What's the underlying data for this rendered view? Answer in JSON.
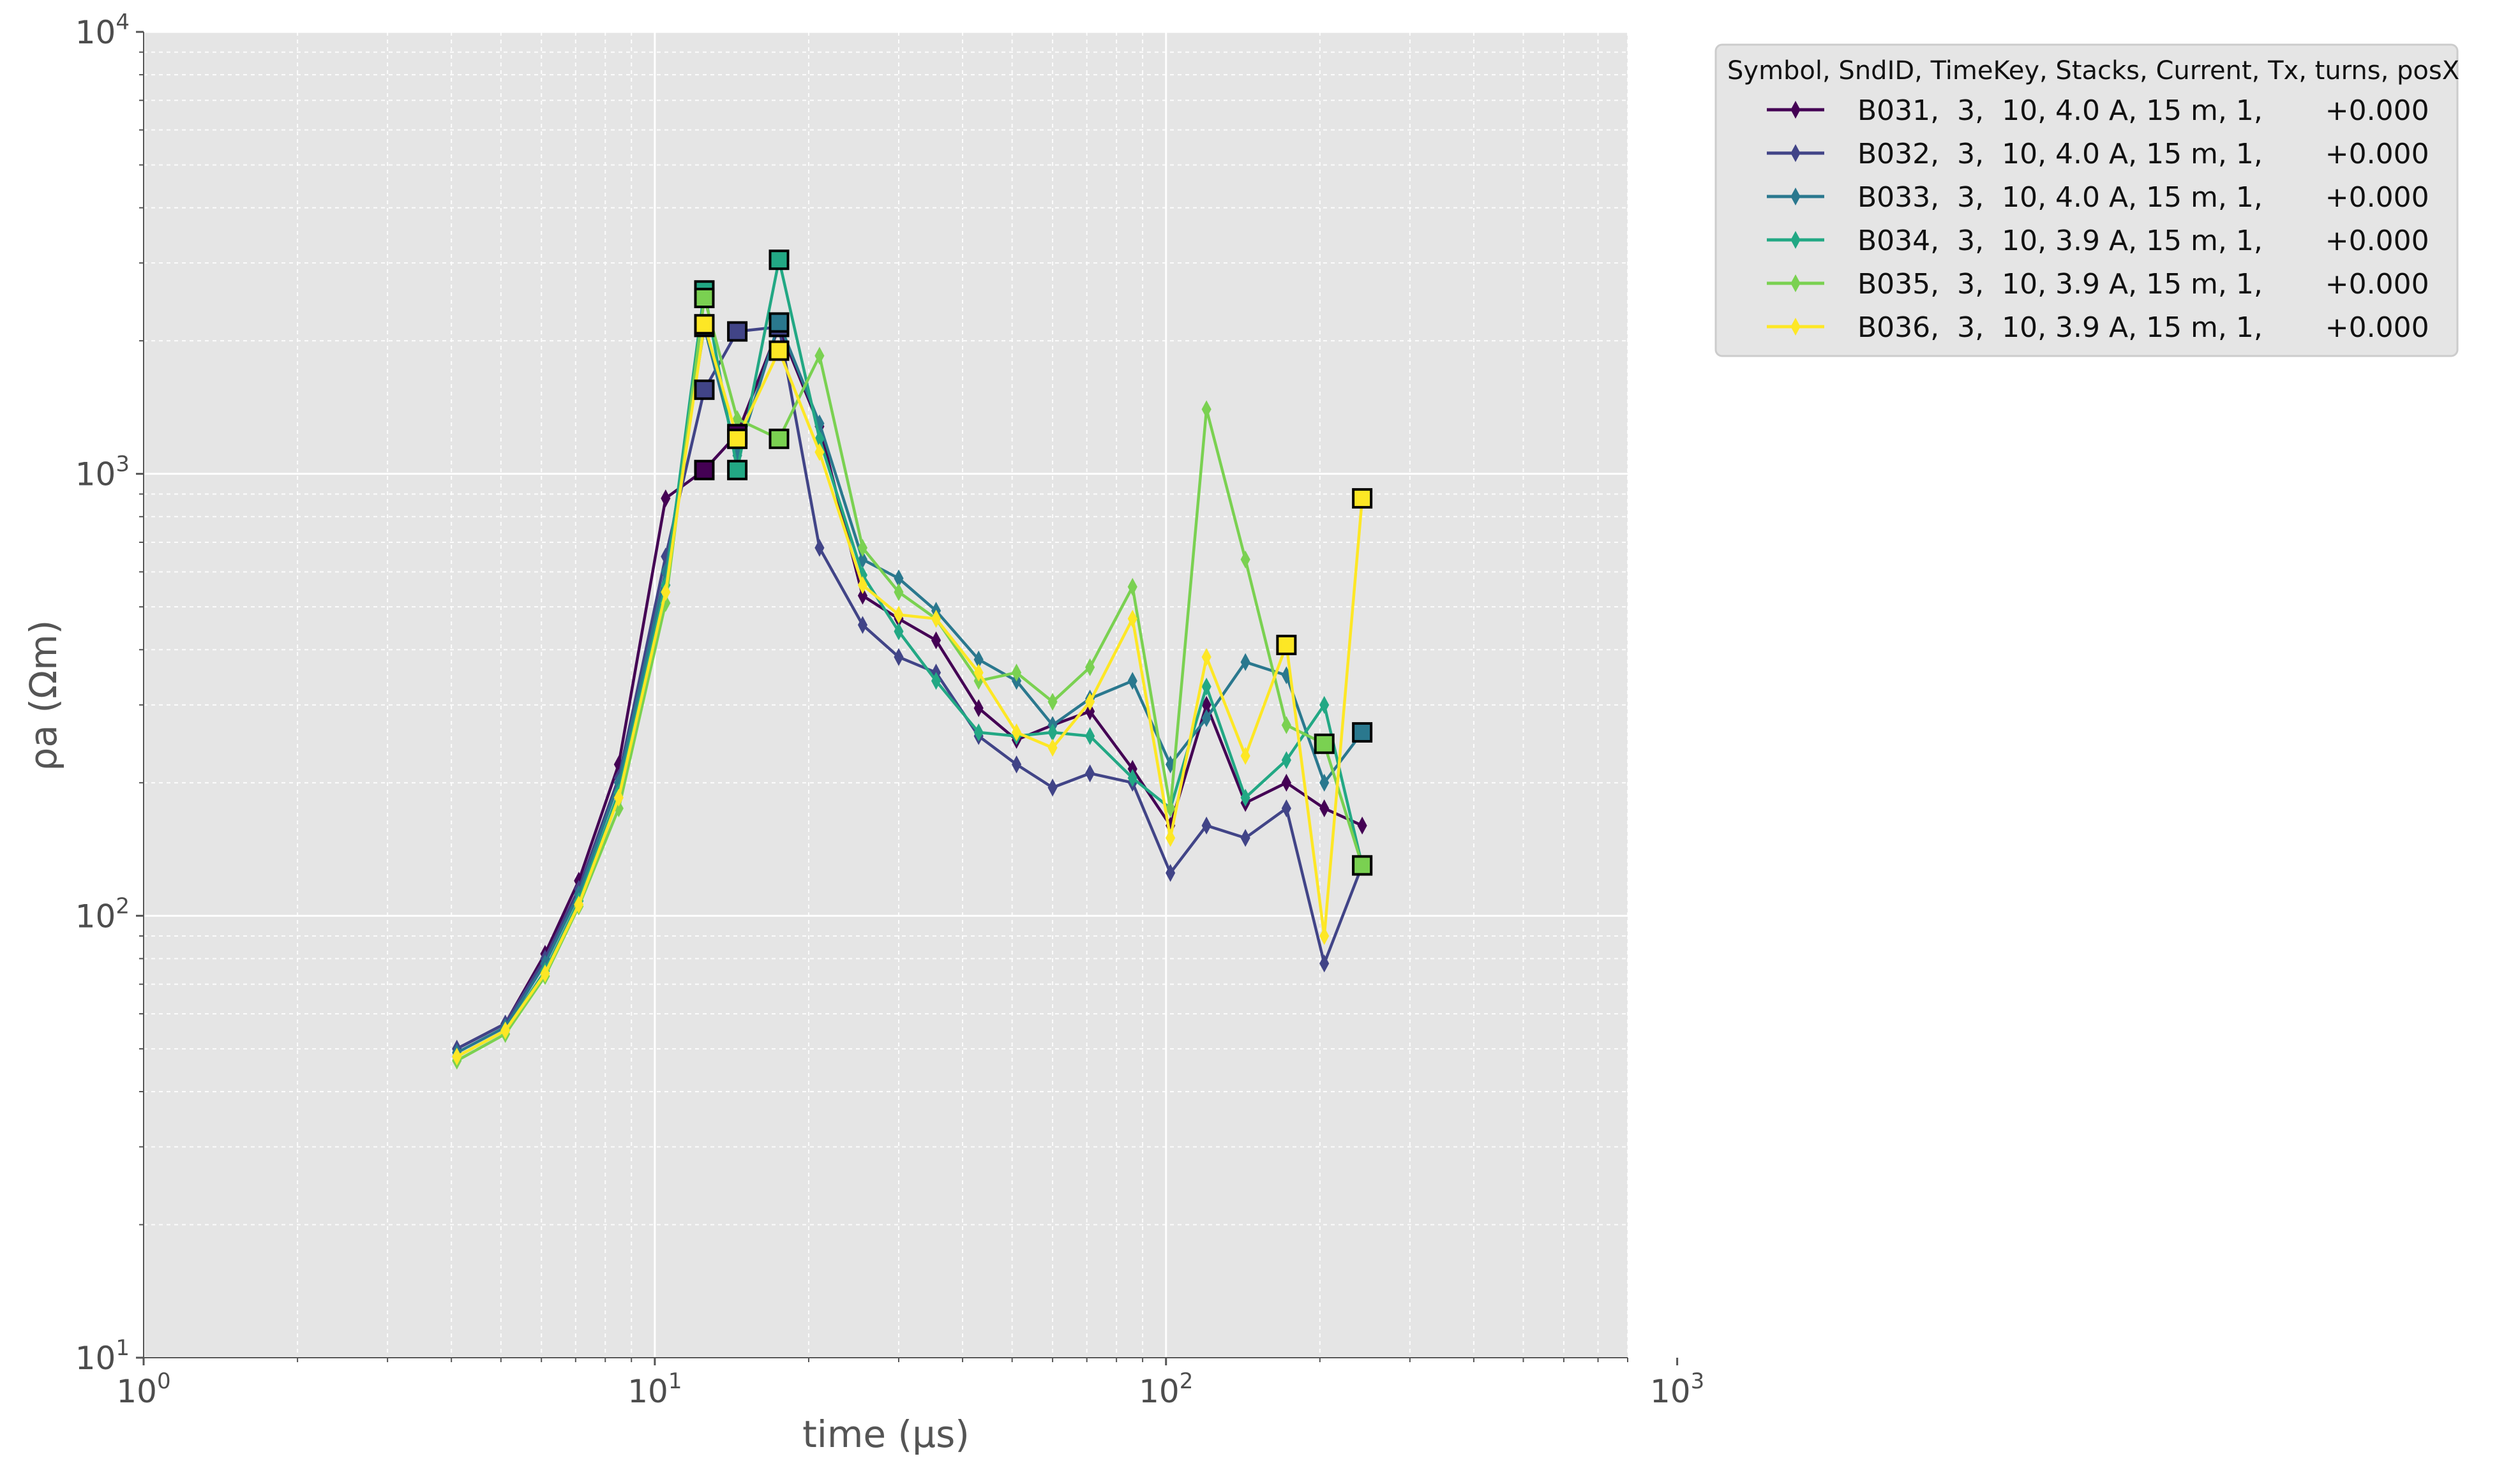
{
  "chart_data": {
    "type": "line",
    "xlabel": "time (μs)",
    "ylabel": "ρa (Ωm)",
    "xscale": "log",
    "yscale": "log",
    "xlim": [
      1,
      800
    ],
    "ylim": [
      10,
      10000
    ],
    "grid": true,
    "legend_placement": "outside-top-right",
    "marker": "thin-diamond",
    "x_ticks": [
      {
        "base": "10",
        "exp": "0"
      },
      {
        "base": "10",
        "exp": "1"
      },
      {
        "base": "10",
        "exp": "2"
      },
      {
        "base": "10",
        "exp": "3"
      }
    ],
    "y_ticks": [
      {
        "base": "10",
        "exp": "1"
      },
      {
        "base": "10",
        "exp": "2"
      },
      {
        "base": "10",
        "exp": "3"
      },
      {
        "base": "10",
        "exp": "4"
      }
    ],
    "legend_title": "Symbol, SndID, TimeKey, Stacks, Current, Tx, turns, posX",
    "x": [
      4.1,
      5.1,
      6.1,
      7.1,
      8.5,
      10.5,
      12.5,
      14.5,
      17.5,
      21,
      25.5,
      30,
      35.5,
      43,
      51,
      60,
      71,
      86,
      102,
      120,
      143,
      172,
      204,
      242
    ],
    "series": [
      {
        "name": "B031,  3,  10, 4.0 A, 15 m, 1,       +0.000",
        "color": "#440154",
        "values": [
          50,
          57,
          82,
          120,
          220,
          880,
          1020,
          1230,
          2150,
          1280,
          530,
          470,
          420,
          295,
          250,
          270,
          290,
          215,
          160,
          300,
          180,
          200,
          175,
          160
        ],
        "flagged": [
          6,
          7,
          8
        ]
      },
      {
        "name": "B032,  3,  10, 4.0 A, 15 m, 1,       +0.000",
        "color": "#414487",
        "values": [
          50,
          57,
          80,
          115,
          205,
          650,
          1550,
          2100,
          2150,
          680,
          455,
          385,
          355,
          255,
          220,
          195,
          210,
          200,
          125,
          160,
          150,
          175,
          78,
          130
        ],
        "flagged": [
          6,
          7,
          8
        ]
      },
      {
        "name": "B033,  3,  10, 4.0 A, 15 m, 1,       +0.000",
        "color": "#2a788e",
        "values": [
          49,
          56,
          78,
          112,
          200,
          600,
          2150,
          1100,
          2200,
          1300,
          640,
          580,
          490,
          380,
          340,
          270,
          310,
          340,
          220,
          280,
          375,
          350,
          200,
          260
        ],
        "flagged": [
          6,
          8,
          23
        ]
      },
      {
        "name": "B034,  3,  10, 3.9 A, 15 m, 1,       +0.000",
        "color": "#22a884",
        "values": [
          48,
          55,
          75,
          108,
          190,
          560,
          2600,
          1020,
          3050,
          1200,
          590,
          440,
          340,
          260,
          255,
          260,
          255,
          205,
          175,
          330,
          185,
          225,
          300,
          130
        ],
        "flagged": [
          6,
          7,
          8,
          23
        ]
      },
      {
        "name": "B035,  3,  10, 3.9 A, 15 m, 1,       +0.000",
        "color": "#7ad151",
        "values": [
          47,
          54,
          73,
          105,
          175,
          510,
          2500,
          1330,
          1200,
          1850,
          680,
          540,
          470,
          340,
          355,
          305,
          365,
          555,
          175,
          1400,
          640,
          270,
          245,
          130
        ],
        "flagged": [
          6,
          8,
          22,
          23
        ]
      },
      {
        "name": "B036,  3,  10, 3.9 A, 15 m, 1,       +0.000",
        "color": "#fde725",
        "values": [
          48,
          55,
          74,
          106,
          185,
          540,
          2180,
          1200,
          1900,
          1120,
          560,
          480,
          470,
          355,
          260,
          240,
          305,
          470,
          150,
          385,
          230,
          410,
          90,
          880
        ],
        "flagged": [
          6,
          7,
          8,
          21,
          23
        ]
      }
    ]
  }
}
